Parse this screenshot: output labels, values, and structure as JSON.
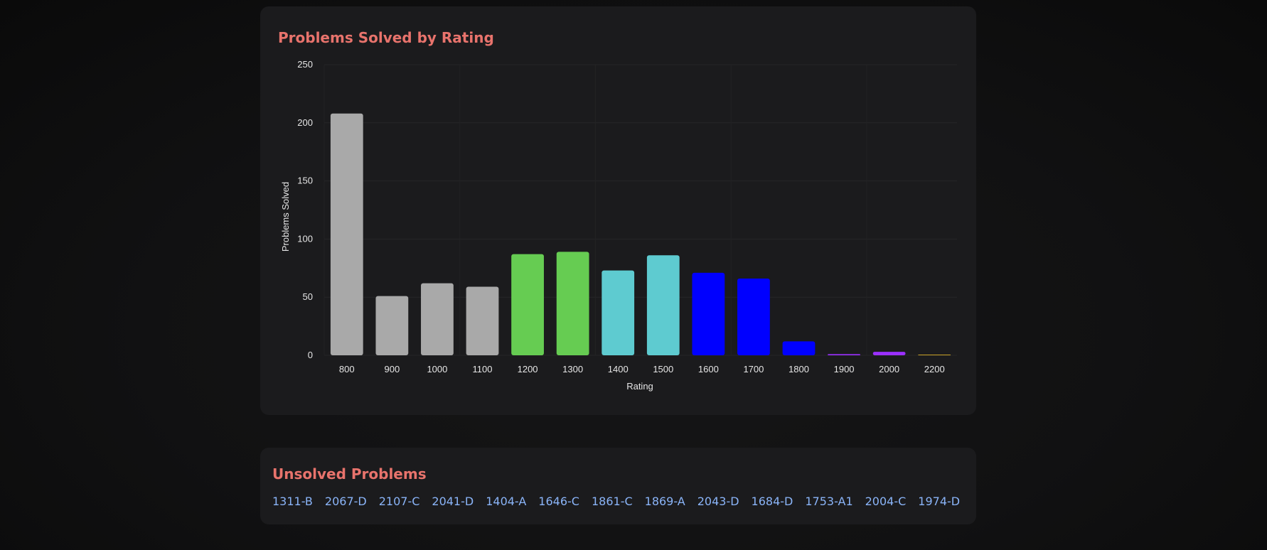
{
  "chart_card": {
    "title": "Problems Solved by Rating"
  },
  "chart_data": {
    "type": "bar",
    "title": "Problems Solved by Rating",
    "xlabel": "Rating",
    "ylabel": "Problems Solved",
    "categories": [
      "800",
      "900",
      "1000",
      "1100",
      "1200",
      "1300",
      "1400",
      "1500",
      "1600",
      "1700",
      "1800",
      "1900",
      "2000",
      "2200"
    ],
    "values": [
      208,
      51,
      62,
      59,
      87,
      89,
      73,
      86,
      71,
      66,
      12,
      1,
      3,
      0.5
    ],
    "colors": [
      "#a9a9a9",
      "#a9a9a9",
      "#a9a9a9",
      "#a9a9a9",
      "#66cc52",
      "#66cc52",
      "#5ecbd0",
      "#5ecbd0",
      "#0000ff",
      "#0000ff",
      "#0000ff",
      "#9b30ff",
      "#9b30ff",
      "#c9a227"
    ],
    "ylim": [
      0,
      250
    ],
    "yticks": [
      0,
      50,
      100,
      150,
      200,
      250
    ],
    "grid": true,
    "legend": false
  },
  "unsolved": {
    "title": "Unsolved Problems",
    "problems": [
      "1311-B",
      "2067-D",
      "2107-C",
      "2041-D",
      "1404-A",
      "1646-C",
      "1861-C",
      "1869-A",
      "2043-D",
      "1684-D",
      "1753-A1",
      "2004-C",
      "1974-D"
    ]
  }
}
